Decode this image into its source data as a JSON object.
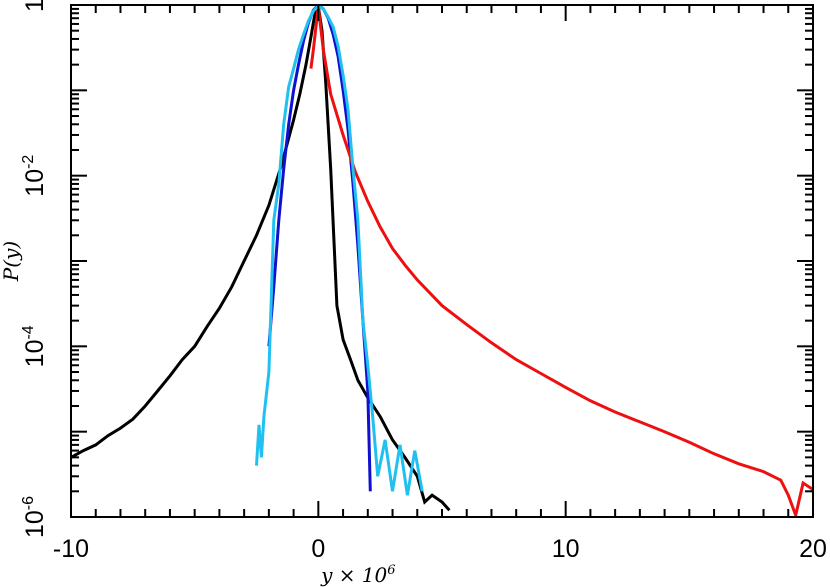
{
  "chart_data": {
    "type": "line",
    "title": "",
    "xlabel": "y × 10",
    "xlabel_exp": "6",
    "ylabel": "P(y)",
    "xlim": [
      -10,
      20
    ],
    "ylim": [
      1e-06,
      1
    ],
    "yscale": "log",
    "grid": false,
    "legend": "none",
    "x_ticks": [
      {
        "value": -10,
        "label": "-10"
      },
      {
        "value": 0,
        "label": "0"
      },
      {
        "value": 10,
        "label": "10"
      },
      {
        "value": 20,
        "label": "20"
      }
    ],
    "y_ticks": [
      {
        "value": 1,
        "label": "1",
        "exp": ""
      },
      {
        "value": 0.01,
        "label": "10",
        "exp": "-2"
      },
      {
        "value": 0.0001,
        "label": "10",
        "exp": "-4"
      },
      {
        "value": 1e-06,
        "label": "10",
        "exp": "-6"
      }
    ],
    "series": [
      {
        "color": "#000000",
        "x": [
          -10,
          -9.5,
          -9,
          -8.5,
          -8,
          -7.5,
          -7,
          -6.5,
          -6,
          -5.5,
          -5,
          -4.5,
          -4,
          -3.5,
          -3,
          -2.5,
          -2,
          -1.5,
          -1,
          -0.75,
          -0.5,
          -0.3,
          -0.15,
          0,
          0.15,
          0.3,
          0.5,
          0.75,
          1,
          1.3,
          1.6,
          2,
          2.5,
          3,
          3.5,
          4,
          4.3,
          4.6,
          5,
          5.3
        ],
        "y": [
          5e-06,
          6e-06,
          7e-06,
          9e-06,
          1.1e-05,
          1.4e-05,
          2e-05,
          3e-05,
          4.5e-05,
          7e-05,
          0.0001,
          0.00017,
          0.00028,
          0.0005,
          0.001,
          0.002,
          0.0045,
          0.013,
          0.045,
          0.09,
          0.2,
          0.42,
          0.75,
          0.97,
          0.5,
          0.12,
          0.012,
          0.0003,
          0.00012,
          7e-05,
          4e-05,
          2.5e-05,
          1.5e-05,
          8e-06,
          5e-06,
          3e-06,
          1.5e-06,
          1.8e-06,
          1.5e-06,
          1.2e-06
        ]
      },
      {
        "color": "#1010d0",
        "x": [
          -2,
          -1.8,
          -1.6,
          -1.4,
          -1.2,
          -1,
          -0.8,
          -0.6,
          -0.4,
          -0.2,
          0,
          0.2,
          0.4,
          0.6,
          0.8,
          1,
          1.2,
          1.4,
          1.6,
          1.8,
          2,
          2.1
        ],
        "y": [
          0.0001,
          0.0005,
          0.003,
          0.012,
          0.04,
          0.1,
          0.2,
          0.38,
          0.62,
          0.87,
          1,
          0.9,
          0.7,
          0.45,
          0.25,
          0.1,
          0.035,
          0.008,
          0.0015,
          0.0002,
          3e-05,
          2e-06
        ]
      },
      {
        "color": "#ee1010",
        "x": [
          -0.3,
          -0.2,
          -0.1,
          0,
          0.2,
          0.5,
          1,
          1.5,
          2,
          2.5,
          3,
          3.5,
          4,
          5,
          6,
          7,
          8,
          9,
          10,
          11,
          12,
          13,
          14,
          15,
          16,
          17,
          18,
          18.7,
          19,
          19.3,
          19.6,
          20
        ],
        "y": [
          0.18,
          0.3,
          0.55,
          0.95,
          0.3,
          0.09,
          0.03,
          0.011,
          0.005,
          0.0025,
          0.0014,
          0.0009,
          0.0006,
          0.0003,
          0.00018,
          0.00011,
          7e-05,
          4.8e-05,
          3.3e-05,
          2.3e-05,
          1.7e-05,
          1.3e-05,
          1e-05,
          7.5e-06,
          5.5e-06,
          4.2e-06,
          3.4e-06,
          2.7e-06,
          1.8e-06,
          1.05e-06,
          2.5e-06,
          2.1e-06
        ]
      },
      {
        "color": "#20c0f0",
        "x": [
          -2.5,
          -2.4,
          -2.3,
          -2.2,
          -2,
          -1.8,
          -1.6,
          -1.4,
          -1.2,
          -1,
          -0.8,
          -0.6,
          -0.4,
          -0.2,
          0,
          0.2,
          0.4,
          0.6,
          0.8,
          1,
          1.2,
          1.4,
          1.6,
          1.8,
          2,
          2.2,
          2.4,
          2.7,
          3,
          3.3,
          3.6,
          3.9,
          4.2
        ],
        "y": [
          4e-06,
          1.2e-05,
          5e-06,
          1.5e-05,
          5e-05,
          0.003,
          0.008,
          0.04,
          0.11,
          0.18,
          0.3,
          0.45,
          0.65,
          0.85,
          0.98,
          0.9,
          0.72,
          0.55,
          0.33,
          0.15,
          0.06,
          0.012,
          0.003,
          0.0002,
          6e-05,
          1.5e-05,
          3e-06,
          8e-06,
          2e-06,
          7e-06,
          1.8e-06,
          6e-06,
          2e-06
        ]
      }
    ]
  }
}
